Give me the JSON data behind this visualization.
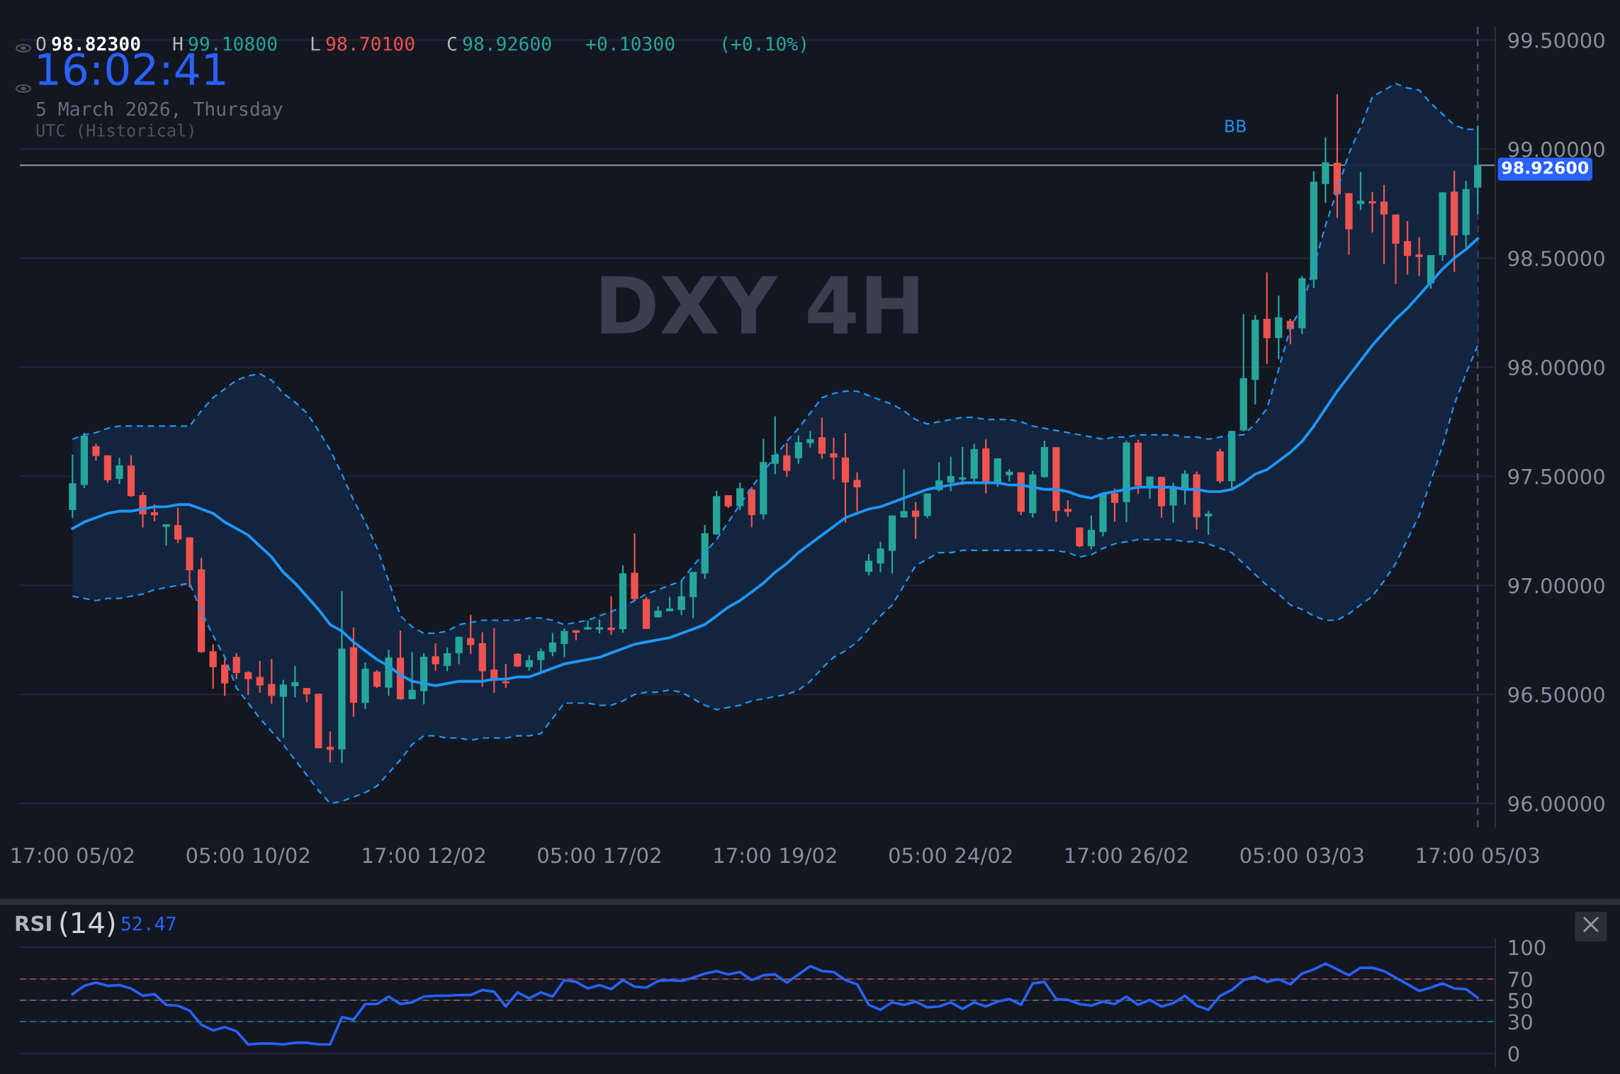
{
  "chart_data": [
    {
      "type": "candlestick",
      "categories": [
        "17:00 05/02",
        null,
        null,
        null,
        null,
        null,
        null,
        null,
        null,
        null,
        null,
        null,
        null,
        null,
        null,
        "05:00 10/02",
        null,
        null,
        null,
        null,
        null,
        null,
        null,
        null,
        null,
        null,
        null,
        null,
        null,
        null,
        "17:00 12/02",
        null,
        null,
        null,
        null,
        null,
        null,
        null,
        null,
        null,
        null,
        null,
        null,
        null,
        null,
        "05:00 17/02",
        null,
        null,
        null,
        null,
        null,
        null,
        null,
        null,
        null,
        null,
        null,
        null,
        null,
        null,
        "17:00 19/02",
        null,
        null,
        null,
        null,
        null,
        null,
        null,
        null,
        null,
        null,
        null,
        null,
        null,
        null,
        "05:00 24/02",
        null,
        null,
        null,
        null,
        null,
        null,
        null,
        null,
        null,
        null,
        null,
        null,
        null,
        null,
        "17:00 26/02",
        null,
        null,
        null,
        null,
        null,
        null,
        null,
        null,
        null,
        null,
        null,
        null,
        null,
        null,
        "05:00 03/03",
        null,
        null,
        null,
        null,
        null,
        null,
        null,
        null,
        null,
        null,
        null,
        null,
        null,
        null,
        "17:00 05/03"
      ],
      "ohlc": [
        [
          97.345,
          97.599,
          97.308,
          97.468
        ],
        [
          97.46,
          97.7,
          97.446,
          97.686
        ],
        [
          97.638,
          97.649,
          97.572,
          97.593
        ],
        [
          97.596,
          97.596,
          97.47,
          97.482
        ],
        [
          97.488,
          97.585,
          97.465,
          97.55
        ],
        [
          97.549,
          97.596,
          97.406,
          97.409
        ],
        [
          97.414,
          97.427,
          97.265,
          97.325
        ],
        [
          97.335,
          97.37,
          97.294,
          97.321
        ],
        [
          97.268,
          97.28,
          97.182,
          97.28
        ],
        [
          97.276,
          97.356,
          97.193,
          97.21
        ],
        [
          97.22,
          97.22,
          96.99,
          97.069
        ],
        [
          97.073,
          97.126,
          96.691,
          96.694
        ],
        [
          96.698,
          96.73,
          96.526,
          96.625
        ],
        [
          96.636,
          96.665,
          96.493,
          96.55
        ],
        [
          96.672,
          96.689,
          96.57,
          96.598
        ],
        [
          96.602,
          96.606,
          96.496,
          96.57
        ],
        [
          96.58,
          96.653,
          96.508,
          96.541
        ],
        [
          96.548,
          96.662,
          96.457,
          96.493
        ],
        [
          96.489,
          96.567,
          96.301,
          96.545
        ],
        [
          96.538,
          96.63,
          96.486,
          96.556
        ],
        [
          96.529,
          96.529,
          96.465,
          96.5
        ],
        [
          96.503,
          96.503,
          96.253,
          96.253
        ],
        [
          96.26,
          96.33,
          96.188,
          96.246
        ],
        [
          96.247,
          96.973,
          96.185,
          96.71
        ],
        [
          96.716,
          96.807,
          96.398,
          96.462
        ],
        [
          96.461,
          96.647,
          96.433,
          96.618
        ],
        [
          96.604,
          96.611,
          96.529,
          96.535
        ],
        [
          96.531,
          96.705,
          96.494,
          96.669
        ],
        [
          96.668,
          96.793,
          96.475,
          96.478
        ],
        [
          96.478,
          96.694,
          96.478,
          96.521
        ],
        [
          96.515,
          96.689,
          96.454,
          96.673
        ],
        [
          96.675,
          96.734,
          96.609,
          96.638
        ],
        [
          96.63,
          96.715,
          96.606,
          96.689
        ],
        [
          96.689,
          96.764,
          96.638,
          96.764
        ],
        [
          96.758,
          96.865,
          96.686,
          96.726
        ],
        [
          96.735,
          96.785,
          96.535,
          96.606
        ],
        [
          96.614,
          96.804,
          96.508,
          96.563
        ],
        [
          96.56,
          96.64,
          96.529,
          96.551
        ],
        [
          96.686,
          96.689,
          96.625,
          96.628
        ],
        [
          96.625,
          96.679,
          96.609,
          96.657
        ],
        [
          96.657,
          96.711,
          96.602,
          96.698
        ],
        [
          96.694,
          96.782,
          96.675,
          96.738
        ],
        [
          96.731,
          96.803,
          96.671,
          96.791
        ],
        [
          96.794,
          96.794,
          96.748,
          96.783
        ],
        [
          96.797,
          96.839,
          96.797,
          96.808
        ],
        [
          96.797,
          96.843,
          96.779,
          96.808
        ],
        [
          96.806,
          96.95,
          96.772,
          96.795
        ],
        [
          96.799,
          97.092,
          96.783,
          97.055
        ],
        [
          97.058,
          97.238,
          96.927,
          96.937
        ],
        [
          96.937,
          96.946,
          96.8,
          96.8
        ],
        [
          96.853,
          96.904,
          96.853,
          96.884
        ],
        [
          96.881,
          96.947,
          96.881,
          96.894
        ],
        [
          96.887,
          97.018,
          96.864,
          96.95
        ],
        [
          96.946,
          97.061,
          96.849,
          97.061
        ],
        [
          97.054,
          97.277,
          97.029,
          97.239
        ],
        [
          97.233,
          97.433,
          97.233,
          97.409
        ],
        [
          97.413,
          97.413,
          97.355,
          97.362
        ],
        [
          97.363,
          97.471,
          97.345,
          97.445
        ],
        [
          97.44,
          97.451,
          97.266,
          97.322
        ],
        [
          97.325,
          97.672,
          97.302,
          97.565
        ],
        [
          97.557,
          97.775,
          97.51,
          97.599
        ],
        [
          97.596,
          97.652,
          97.497,
          97.525
        ],
        [
          97.582,
          97.687,
          97.557,
          97.656
        ],
        [
          97.652,
          97.707,
          97.632,
          97.67
        ],
        [
          97.679,
          97.769,
          97.58,
          97.603
        ],
        [
          97.605,
          97.676,
          97.485,
          97.586
        ],
        [
          97.586,
          97.699,
          97.287,
          97.472
        ],
        [
          97.483,
          97.518,
          97.339,
          97.449
        ],
        [
          97.062,
          97.143,
          97.045,
          97.113
        ],
        [
          97.1,
          97.2,
          97.06,
          97.169
        ],
        [
          97.158,
          97.32,
          97.054,
          97.32
        ],
        [
          97.311,
          97.532,
          97.311,
          97.34
        ],
        [
          97.343,
          97.382,
          97.213,
          97.314
        ],
        [
          97.318,
          97.421,
          97.308,
          97.421
        ],
        [
          97.437,
          97.564,
          97.431,
          97.481
        ],
        [
          97.471,
          97.59,
          97.431,
          97.501
        ],
        [
          97.485,
          97.634,
          97.46,
          97.495
        ],
        [
          97.489,
          97.649,
          97.467,
          97.624
        ],
        [
          97.628,
          97.669,
          97.421,
          97.472
        ],
        [
          97.472,
          97.582,
          97.451,
          97.582
        ],
        [
          97.505,
          97.533,
          97.476,
          97.521
        ],
        [
          97.518,
          97.518,
          97.322,
          97.337
        ],
        [
          97.331,
          97.524,
          97.31,
          97.508
        ],
        [
          97.496,
          97.664,
          97.493,
          97.634
        ],
        [
          97.633,
          97.633,
          97.29,
          97.341
        ],
        [
          97.35,
          97.39,
          97.315,
          97.337
        ],
        [
          97.265,
          97.265,
          97.175,
          97.179
        ],
        [
          97.179,
          97.32,
          97.165,
          97.255
        ],
        [
          97.244,
          97.427,
          97.225,
          97.422
        ],
        [
          97.422,
          97.444,
          97.291,
          97.378
        ],
        [
          97.381,
          97.664,
          97.29,
          97.655
        ],
        [
          97.654,
          97.667,
          97.418,
          97.457
        ],
        [
          97.452,
          97.499,
          97.397,
          97.499
        ],
        [
          97.497,
          97.497,
          97.31,
          97.362
        ],
        [
          97.366,
          97.469,
          97.287,
          97.451
        ],
        [
          97.444,
          97.528,
          97.371,
          97.512
        ],
        [
          97.509,
          97.522,
          97.256,
          97.312
        ],
        [
          97.316,
          97.34,
          97.231,
          97.329
        ],
        [
          97.614,
          97.626,
          97.468,
          97.477
        ],
        [
          97.478,
          97.708,
          97.439,
          97.708
        ],
        [
          97.71,
          98.243,
          97.705,
          97.95
        ],
        [
          97.942,
          98.239,
          97.829,
          98.217
        ],
        [
          98.222,
          98.435,
          98.015,
          98.133
        ],
        [
          98.134,
          98.328,
          98.037,
          98.229
        ],
        [
          98.213,
          98.222,
          98.105,
          98.175
        ],
        [
          98.178,
          98.418,
          98.152,
          98.408
        ],
        [
          98.401,
          98.898,
          98.363,
          98.85
        ],
        [
          98.84,
          99.054,
          98.753,
          98.939
        ],
        [
          98.937,
          99.252,
          98.684,
          98.792
        ],
        [
          98.798,
          98.798,
          98.516,
          98.632
        ],
        [
          98.748,
          98.895,
          98.721,
          98.763
        ],
        [
          98.761,
          98.803,
          98.617,
          98.751
        ],
        [
          98.759,
          98.836,
          98.472,
          98.7
        ],
        [
          98.7,
          98.7,
          98.382,
          98.566
        ],
        [
          98.578,
          98.67,
          98.425,
          98.51
        ],
        [
          98.517,
          98.596,
          98.418,
          98.505
        ],
        [
          98.385,
          98.514,
          98.36,
          98.514
        ],
        [
          98.514,
          98.802,
          98.488,
          98.802
        ],
        [
          98.805,
          98.901,
          98.437,
          98.604
        ],
        [
          98.606,
          98.855,
          98.549,
          98.817
        ],
        [
          98.823,
          99.108,
          98.701,
          98.926
        ]
      ],
      "colors": [
        "#26a69a",
        "#26a69a",
        "#ef5350",
        "#ef5350",
        "#26a69a",
        "#ef5350",
        "#ef5350",
        "#ef5350",
        "#26a69a",
        "#ef5350",
        "#ef5350",
        "#ef5350",
        "#ef5350",
        "#ef5350",
        "#ef5350",
        "#ef5350",
        "#ef5350",
        "#ef5350",
        "#26a69a",
        "#26a69a",
        "#ef5350",
        "#ef5350",
        "#ef5350",
        "#26a69a",
        "#ef5350",
        "#26a69a",
        "#ef5350",
        "#26a69a",
        "#ef5350",
        "#26a69a",
        "#26a69a",
        "#ef5350",
        "#26a69a",
        "#26a69a",
        "#ef5350",
        "#ef5350",
        "#ef5350",
        "#ef5350",
        "#ef5350",
        "#26a69a",
        "#26a69a",
        "#26a69a",
        "#26a69a",
        "#ef5350",
        "#26a69a",
        "#26a69a",
        "#ef5350",
        "#26a69a",
        "#ef5350",
        "#ef5350",
        "#26a69a",
        "#26a69a",
        "#26a69a",
        "#26a69a",
        "#26a69a",
        "#26a69a",
        "#ef5350",
        "#26a69a",
        "#ef5350",
        "#26a69a",
        "#26a69a",
        "#ef5350",
        "#26a69a",
        "#26a69a",
        "#ef5350",
        "#ef5350",
        "#ef5350",
        "#ef5350",
        "#26a69a",
        "#26a69a",
        "#26a69a",
        "#26a69a",
        "#ef5350",
        "#26a69a",
        "#26a69a",
        "#26a69a",
        "#26a69a",
        "#26a69a",
        "#ef5350",
        "#26a69a",
        "#26a69a",
        "#ef5350",
        "#26a69a",
        "#26a69a",
        "#ef5350",
        "#ef5350",
        "#ef5350",
        "#26a69a",
        "#26a69a",
        "#ef5350",
        "#26a69a",
        "#ef5350",
        "#26a69a",
        "#ef5350",
        "#26a69a",
        "#26a69a",
        "#ef5350",
        "#26a69a",
        "#ef5350",
        "#26a69a",
        "#26a69a",
        "#26a69a",
        "#ef5350",
        "#26a69a",
        "#ef5350",
        "#26a69a",
        "#26a69a",
        "#26a69a",
        "#ef5350",
        "#ef5350",
        "#26a69a",
        "#ef5350",
        "#ef5350",
        "#ef5350",
        "#ef5350",
        "#ef5350",
        "#26a69a",
        "#26a69a",
        "#ef5350",
        "#26a69a",
        "#26a69a"
      ],
      "series": [
        {
          "type": "line",
          "color": "#2196f3",
          "line_style": "dashed",
          "values": [
            97.67,
            97.69,
            97.7,
            97.72,
            97.73,
            97.73,
            97.73,
            97.73,
            97.73,
            97.73,
            97.73,
            97.8,
            97.86,
            97.9,
            97.94,
            97.96,
            97.97,
            97.94,
            97.88,
            97.84,
            97.79,
            97.71,
            97.62,
            97.51,
            97.39,
            97.29,
            97.17,
            97.02,
            96.86,
            96.81,
            96.78,
            96.78,
            96.79,
            96.82,
            96.83,
            96.84,
            96.84,
            96.84,
            96.84,
            96.85,
            96.85,
            96.84,
            96.82,
            96.83,
            96.84,
            96.86,
            96.88,
            96.9,
            96.93,
            96.96,
            96.98,
            97.0,
            97.02,
            97.09,
            97.15,
            97.21,
            97.29,
            97.37,
            97.45,
            97.52,
            97.59,
            97.66,
            97.72,
            97.79,
            97.86,
            97.88,
            97.89,
            97.89,
            97.87,
            97.85,
            97.83,
            97.8,
            97.76,
            97.74,
            97.75,
            97.76,
            97.77,
            97.77,
            97.76,
            97.76,
            97.76,
            97.75,
            97.73,
            97.72,
            97.71,
            97.7,
            97.69,
            97.68,
            97.67,
            97.68,
            97.68,
            97.69,
            97.69,
            97.69,
            97.69,
            97.68,
            97.68,
            97.67,
            97.68,
            97.69,
            97.69,
            97.74,
            97.81,
            97.99,
            98.18,
            98.28,
            98.46,
            98.65,
            98.81,
            98.98,
            99.1,
            99.24,
            99.27,
            99.3,
            99.28,
            99.27,
            99.21,
            99.16,
            99.11,
            99.09,
            99.09
          ]
        },
        {
          "type": "line",
          "color": "#2196f3",
          "line_style": "dashed",
          "values": [
            96.95,
            96.94,
            96.93,
            96.94,
            96.94,
            96.95,
            96.96,
            96.98,
            96.99,
            97.0,
            97.01,
            96.88,
            96.77,
            96.67,
            96.53,
            96.46,
            96.39,
            96.33,
            96.27,
            96.2,
            96.13,
            96.06,
            96.0,
            96.01,
            96.03,
            96.05,
            96.08,
            96.14,
            96.2,
            96.27,
            96.31,
            96.31,
            96.3,
            96.3,
            96.29,
            96.3,
            96.3,
            96.3,
            96.31,
            96.31,
            96.32,
            96.39,
            96.46,
            96.46,
            96.46,
            96.45,
            96.45,
            96.47,
            96.5,
            96.51,
            96.51,
            96.52,
            96.51,
            96.48,
            96.45,
            96.43,
            96.44,
            96.45,
            96.47,
            96.48,
            96.49,
            96.5,
            96.52,
            96.56,
            96.62,
            96.67,
            96.7,
            96.74,
            96.8,
            96.86,
            96.91,
            97.0,
            97.09,
            97.12,
            97.15,
            97.15,
            97.16,
            97.16,
            97.16,
            97.16,
            97.16,
            97.16,
            97.16,
            97.16,
            97.16,
            97.15,
            97.13,
            97.14,
            97.17,
            97.19,
            97.2,
            97.21,
            97.21,
            97.21,
            97.21,
            97.2,
            97.2,
            97.19,
            97.17,
            97.15,
            97.1,
            97.05,
            97.0,
            96.96,
            96.91,
            96.89,
            96.86,
            96.84,
            96.84,
            96.87,
            96.91,
            96.95,
            97.02,
            97.1,
            97.21,
            97.32,
            97.48,
            97.64,
            97.83,
            97.97,
            98.1
          ]
        },
        {
          "type": "line",
          "color": "#2196f3",
          "line_style": "solid",
          "values": [
            97.26,
            97.29,
            97.31,
            97.33,
            97.34,
            97.34,
            97.35,
            97.36,
            97.36,
            97.37,
            97.37,
            97.35,
            97.33,
            97.29,
            97.26,
            97.23,
            97.18,
            97.13,
            97.06,
            97.01,
            96.95,
            96.89,
            96.82,
            96.79,
            96.74,
            96.7,
            96.66,
            96.63,
            96.59,
            96.56,
            96.55,
            96.54,
            96.55,
            96.56,
            96.56,
            96.56,
            96.57,
            96.57,
            96.58,
            96.58,
            96.6,
            96.62,
            96.64,
            96.65,
            96.66,
            96.67,
            96.69,
            96.71,
            96.73,
            96.74,
            96.75,
            96.76,
            96.78,
            96.8,
            96.82,
            96.86,
            96.9,
            96.93,
            96.97,
            97.01,
            97.06,
            97.1,
            97.15,
            97.19,
            97.23,
            97.27,
            97.31,
            97.33,
            97.35,
            97.36,
            97.38,
            97.4,
            97.42,
            97.44,
            97.45,
            97.46,
            97.47,
            97.47,
            97.47,
            97.47,
            97.46,
            97.46,
            97.45,
            97.44,
            97.44,
            97.43,
            97.41,
            97.4,
            97.42,
            97.43,
            97.44,
            97.45,
            97.45,
            97.45,
            97.45,
            97.44,
            97.44,
            97.43,
            97.43,
            97.44,
            97.47,
            97.51,
            97.53,
            97.57,
            97.61,
            97.66,
            97.73,
            97.81,
            97.89,
            97.96,
            98.03,
            98.1,
            98.16,
            98.22,
            98.27,
            98.33,
            98.39,
            98.45,
            98.5,
            98.54,
            98.59
          ],
          "upper": [
            97.67,
            97.69,
            97.7,
            97.72,
            97.73,
            97.73,
            97.73,
            97.73,
            97.73,
            97.73,
            97.73,
            97.8,
            97.86,
            97.9,
            97.94,
            97.96,
            97.97,
            97.94,
            97.88,
            97.84,
            97.79,
            97.71,
            97.62,
            97.51,
            97.39,
            97.29,
            97.17,
            97.02,
            96.86,
            96.81,
            96.78,
            96.78,
            96.79,
            96.82,
            96.83,
            96.84,
            96.84,
            96.84,
            96.84,
            96.85,
            96.85,
            96.84,
            96.82,
            96.83,
            96.84,
            96.86,
            96.88,
            96.9,
            96.93,
            96.96,
            96.98,
            97.0,
            97.02,
            97.09,
            97.15,
            97.21,
            97.29,
            97.37,
            97.45,
            97.52,
            97.59,
            97.66,
            97.72,
            97.79,
            97.86,
            97.88,
            97.89,
            97.89,
            97.87,
            97.85,
            97.83,
            97.8,
            97.76,
            97.74,
            97.75,
            97.76,
            97.77,
            97.77,
            97.76,
            97.76,
            97.76,
            97.75,
            97.73,
            97.72,
            97.71,
            97.7,
            97.69,
            97.68,
            97.67,
            97.68,
            97.68,
            97.69,
            97.69,
            97.69,
            97.69,
            97.68,
            97.68,
            97.67,
            97.68,
            97.69,
            97.69,
            97.74,
            97.81,
            97.99,
            98.18,
            98.28,
            98.46,
            98.65,
            98.81,
            98.98,
            99.1,
            99.24,
            99.27,
            99.3,
            99.28,
            99.27,
            99.21,
            99.16,
            99.11,
            99.09,
            99.09
          ],
          "lower": [
            96.95,
            96.94,
            96.93,
            96.94,
            96.94,
            96.95,
            96.96,
            96.98,
            96.99,
            97.0,
            97.01,
            96.88,
            96.77,
            96.67,
            96.53,
            96.46,
            96.39,
            96.33,
            96.27,
            96.2,
            96.13,
            96.06,
            96.0,
            96.01,
            96.03,
            96.05,
            96.08,
            96.14,
            96.2,
            96.27,
            96.31,
            96.31,
            96.3,
            96.3,
            96.29,
            96.3,
            96.3,
            96.3,
            96.31,
            96.31,
            96.32,
            96.39,
            96.46,
            96.46,
            96.46,
            96.45,
            96.45,
            96.47,
            96.5,
            96.51,
            96.51,
            96.52,
            96.51,
            96.48,
            96.45,
            96.43,
            96.44,
            96.45,
            96.47,
            96.48,
            96.49,
            96.5,
            96.52,
            96.56,
            96.62,
            96.67,
            96.7,
            96.74,
            96.8,
            96.86,
            96.91,
            97.0,
            97.09,
            97.12,
            97.15,
            97.15,
            97.16,
            97.16,
            97.16,
            97.16,
            97.16,
            97.16,
            97.16,
            97.16,
            97.16,
            97.15,
            97.13,
            97.14,
            97.17,
            97.19,
            97.2,
            97.21,
            97.21,
            97.21,
            97.21,
            97.2,
            97.2,
            97.19,
            97.17,
            97.15,
            97.1,
            97.05,
            97.0,
            96.96,
            96.91,
            96.89,
            96.86,
            96.84,
            96.84,
            96.87,
            96.91,
            96.95,
            97.02,
            97.1,
            97.21,
            97.32,
            97.48,
            97.64,
            97.83,
            97.97,
            98.1
          ]
        }
      ],
      "ylim": [
        95.89,
        99.56
      ],
      "yticks": [
        {
          "value": 96.0,
          "label": "96.00000"
        },
        {
          "value": 96.5,
          "label": "96.50000"
        },
        {
          "value": 97.0,
          "label": "97.00000"
        },
        {
          "value": 97.5,
          "label": "97.50000"
        },
        {
          "value": 98.0,
          "label": "98.00000"
        },
        {
          "value": 98.5,
          "label": "98.50000"
        },
        {
          "value": 99.0,
          "label": "99.00000"
        },
        {
          "value": 99.5,
          "label": "99.50000"
        }
      ],
      "grid": "y",
      "ref_lines": [
        {
          "axis": "y",
          "value": 98.926,
          "label": "98.92600",
          "color": "#9598a1",
          "line_style": "solid"
        },
        {
          "axis": "x",
          "value": "17:00 05/03",
          "label": null,
          "color": "#4a4e5a",
          "line_style": "dashed"
        }
      ],
      "annotations": [
        "O",
        "98.82300",
        "H",
        "99.10800",
        "L",
        "98.70100",
        "C",
        "98.92600",
        "+0.10300",
        "(+0.10%)",
        "16:02:41",
        "5 March 2026, Thursday",
        "UTC (Historical)",
        "DXY 4H",
        "BB"
      ]
    },
    {
      "type": "line",
      "title": "RSI",
      "subtitle": "(14)",
      "categories": [
        null,
        null,
        null,
        null,
        null,
        null,
        null,
        null,
        null,
        null,
        null,
        null,
        null,
        null,
        null,
        null,
        null,
        null,
        null,
        null,
        null,
        null,
        null,
        null,
        null,
        null,
        null,
        null,
        null,
        null,
        null,
        null,
        null,
        null,
        null,
        null,
        null,
        null,
        null,
        null,
        null,
        null,
        null,
        null,
        null,
        null,
        null,
        null,
        null,
        null,
        null,
        null,
        null,
        null,
        null,
        null,
        null,
        null,
        null,
        null,
        null,
        null,
        null,
        null,
        null,
        null,
        null,
        null,
        null,
        null,
        null,
        null,
        null,
        null,
        null,
        null,
        null,
        null,
        null,
        null,
        null,
        null,
        null,
        null,
        null,
        null,
        null,
        null,
        null,
        null,
        null,
        null,
        null,
        null,
        null,
        null,
        null,
        null,
        null,
        null,
        null,
        null,
        null,
        null,
        null,
        null,
        null,
        null,
        null,
        null,
        null,
        null,
        null,
        null,
        null,
        null,
        null,
        null,
        null,
        null,
        null
      ],
      "series": [
        {
          "color": "#2962ff",
          "values": [
            55.8,
            63.6,
            66.7,
            63.6,
            64.3,
            61.2,
            54.3,
            55.8,
            45.7,
            45.0,
            40.3,
            27.1,
            21.7,
            24.8,
            20.9,
            8.5,
            9.3,
            9.3,
            8.5,
            10.1,
            10.1,
            8.5,
            8.5,
            34.1,
            31.8,
            46.5,
            46.5,
            53.5,
            46.5,
            48.1,
            53.5,
            54.3,
            54.3,
            55.0,
            55.0,
            59.7,
            58.1,
            44.2,
            57.4,
            51.9,
            57.4,
            53.5,
            69.0,
            67.4,
            61.2,
            64.3,
            60.5,
            69.0,
            62.8,
            62.0,
            68.2,
            69.0,
            68.2,
            71.3,
            75.2,
            77.5,
            74.4,
            76.7,
            69.0,
            73.6,
            74.4,
            66.7,
            74.4,
            82.2,
            77.5,
            76.7,
            69.0,
            65.1,
            45.7,
            41.1,
            48.1,
            45.7,
            48.8,
            43.4,
            44.2,
            48.1,
            41.9,
            48.1,
            44.2,
            48.8,
            51.2,
            45.7,
            65.9,
            67.4,
            51.2,
            50.4,
            46.5,
            45.0,
            48.8,
            46.5,
            53.5,
            45.7,
            50.4,
            44.2,
            47.3,
            54.3,
            45.0,
            41.1,
            54.3,
            59.7,
            69.0,
            72.1,
            67.4,
            69.8,
            65.1,
            75.2,
            79.1,
            84.5,
            79.1,
            73.6,
            80.6,
            80.6,
            77.5,
            71.3,
            65.1,
            58.9,
            62.0,
            65.9,
            61.2,
            60.5,
            52.47
          ]
        }
      ],
      "ylim": [
        -12,
        108
      ],
      "yticks": [
        0,
        30,
        50,
        70,
        100
      ],
      "grid": "y",
      "tick_labels": "y",
      "ref_lines": [
        {
          "axis": "y",
          "value": 70,
          "label": null,
          "color": "#9c4048",
          "line_style": "dashed"
        },
        {
          "axis": "y",
          "value": 50,
          "label": null,
          "color": "#5d606b",
          "line_style": "dashed"
        },
        {
          "axis": "y",
          "value": 30,
          "label": null,
          "color": "#1f6f6a",
          "line_style": "dashed"
        }
      ],
      "annotations": [
        "52.47"
      ]
    }
  ]
}
